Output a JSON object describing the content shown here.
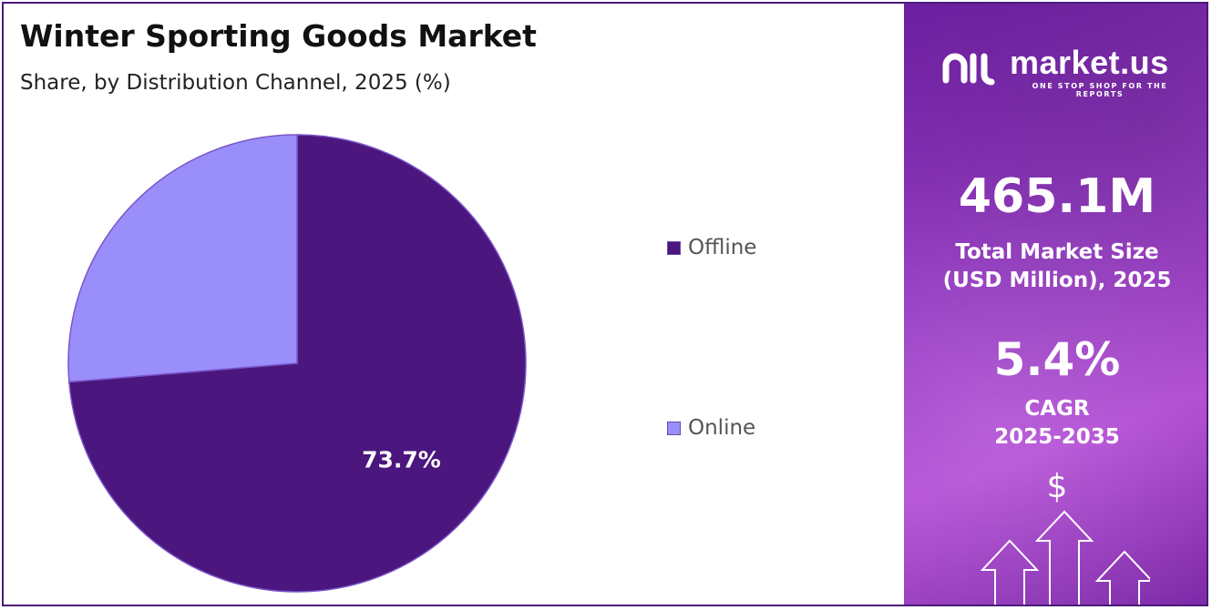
{
  "title": "Winter Sporting Goods Market",
  "subtitle": "Share, by Distribution Channel, 2025 (%)",
  "chart_data": {
    "type": "pie",
    "title": "Winter Sporting Goods Market",
    "subtitle": "Share, by Distribution Channel, 2025 (%)",
    "categories": [
      "Offline",
      "Online"
    ],
    "values": [
      73.7,
      26.3
    ],
    "colors": [
      "#4b167e",
      "#9a8efb"
    ],
    "data_labels": [
      "73.7%",
      ""
    ],
    "legend_position": "right"
  },
  "legend": {
    "items": [
      {
        "label": "Offline",
        "color": "#4b167e"
      },
      {
        "label": "Online",
        "color": "#9a8efb"
      }
    ]
  },
  "panel": {
    "brand": "market.us",
    "tagline": "ONE STOP SHOP FOR THE REPORTS",
    "market_size": "465.1M",
    "market_size_label_line1": "Total Market Size",
    "market_size_label_line2": "(USD Million), 2025",
    "cagr": "5.4%",
    "cagr_label_line1": "CAGR",
    "cagr_label_line2": "2025-2035",
    "currency_symbol": "$",
    "icons": [
      "market-us-logo-icon",
      "dollar-sign-icon",
      "growth-arrows-icon"
    ]
  }
}
